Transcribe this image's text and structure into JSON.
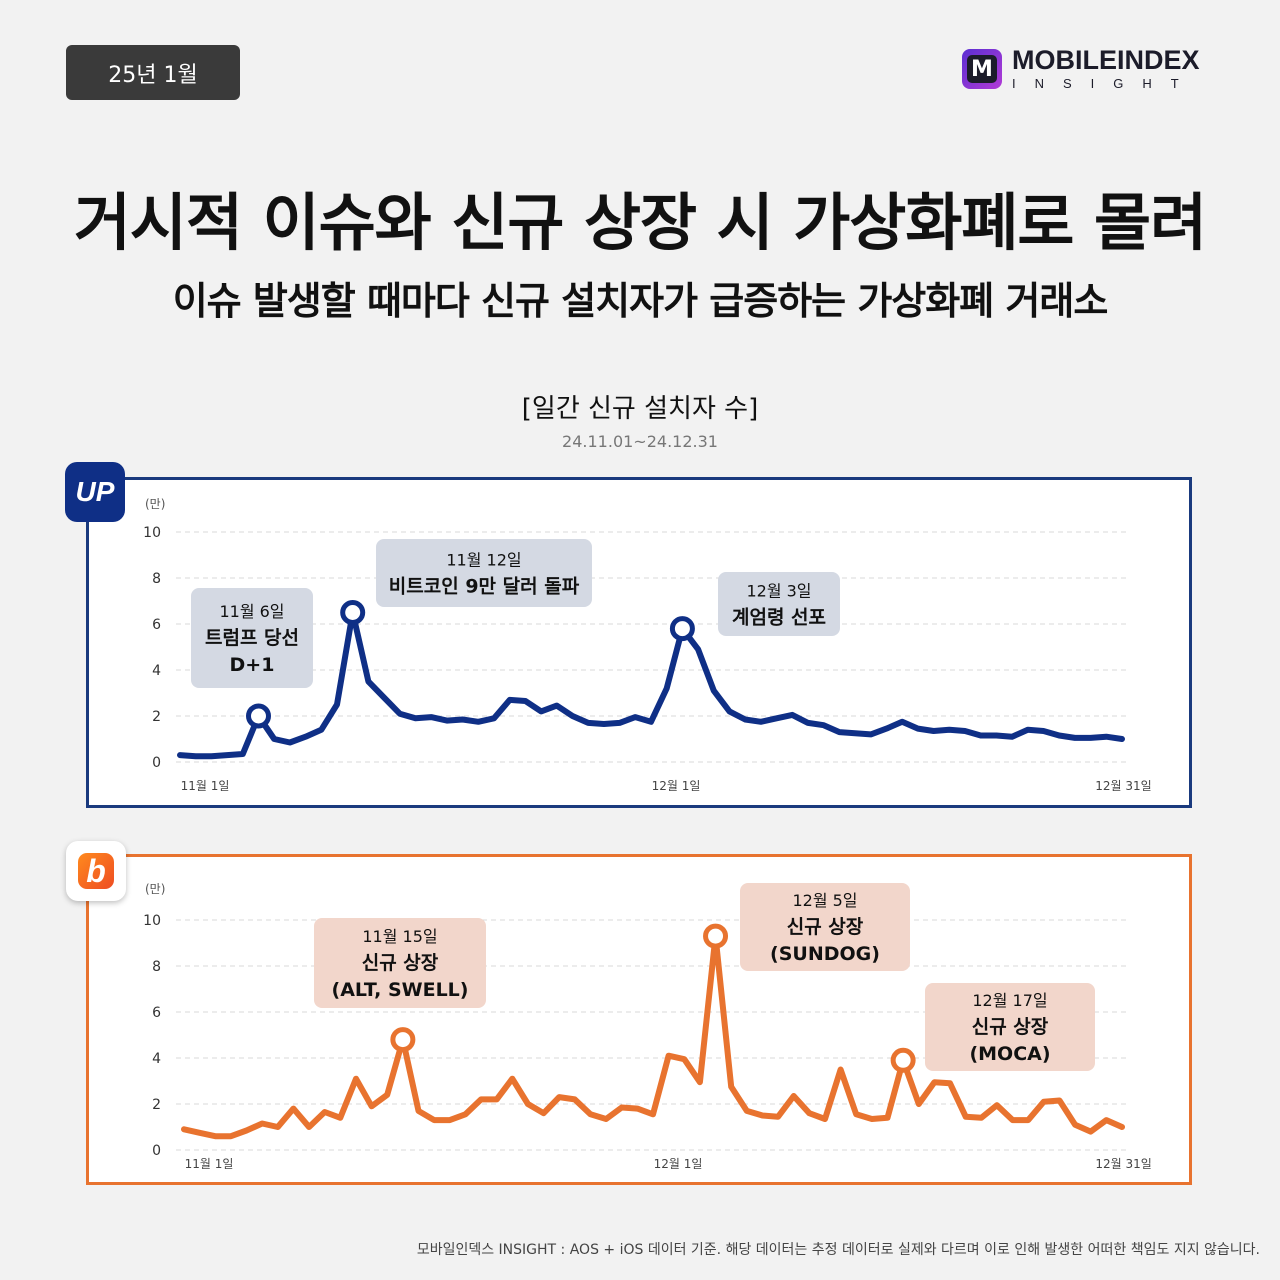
{
  "header": {
    "date_badge": "25년 1월",
    "logo_mark": "M",
    "logo_main": "MOBILEINDEX",
    "logo_sub": "INSIGHT"
  },
  "title": "거시적 이슈와 신규 상장 시 가상화폐로 몰려",
  "subtitle": "이슈 발생할 때마다 신규 설치자가 급증하는 가상화폐 거래소",
  "chart_header": {
    "title": "[일간 신규 설치자 수]",
    "period": "24.11.01~24.12.31"
  },
  "colors": {
    "upbit": "#0f2f86",
    "bithumb": "#e8732f",
    "upbit_callout": "#d4d9e3",
    "bithumb_callout": "#f2d6cb"
  },
  "icons": {
    "upbit": "upbit-app-icon",
    "bithumb": "bithumb-app-icon"
  },
  "icon_text": {
    "upbit": "UP",
    "bithumb": "b"
  },
  "footnote": "모바일인덱스 INSIGHT : AOS + iOS 데이터 기준. 해당 데이터는 추정 데이터로 실제와 다르며 이로 인해 발생한 어떠한 책임도 지지 않습니다.",
  "chart_data": [
    {
      "id": "upbit",
      "type": "line",
      "unit": "(만)",
      "ylim": [
        0,
        10
      ],
      "yticks": [
        0,
        2,
        4,
        6,
        8,
        10
      ],
      "grid": true,
      "x_range": [
        1,
        61
      ],
      "x_ticks": [
        {
          "x": 1,
          "label": "11월 1일"
        },
        {
          "x": 31,
          "label": "12월 1일"
        },
        {
          "x": 59.5,
          "label": "12월 31일"
        }
      ],
      "values": [
        0.3,
        0.25,
        0.25,
        0.3,
        0.35,
        2.0,
        1.0,
        0.85,
        1.1,
        1.4,
        2.5,
        6.5,
        3.5,
        2.8,
        2.1,
        1.9,
        1.95,
        1.8,
        1.85,
        1.75,
        1.9,
        2.7,
        2.65,
        2.2,
        2.45,
        2.0,
        1.7,
        1.65,
        1.7,
        1.95,
        1.75,
        3.2,
        5.8,
        4.9,
        3.1,
        2.2,
        1.85,
        1.75,
        1.9,
        2.05,
        1.7,
        1.6,
        1.3,
        1.25,
        1.2,
        1.45,
        1.75,
        1.45,
        1.35,
        1.4,
        1.35,
        1.15,
        1.15,
        1.1,
        1.4,
        1.35,
        1.15,
        1.05,
        1.05,
        1.1,
        1.0
      ],
      "callouts": [
        {
          "x": 6,
          "y": 2.0,
          "lines": [
            "11월 6일",
            "트럼프 당선",
            "D+1"
          ]
        },
        {
          "x": 12,
          "y": 6.5,
          "lines": [
            "11월 12일",
            "비트코인 9만 달러 돌파"
          ]
        },
        {
          "x": 33,
          "y": 5.8,
          "lines": [
            "12월 3일",
            "계엄령 선포"
          ]
        }
      ]
    },
    {
      "id": "bithumb",
      "type": "line",
      "unit": "(만)",
      "ylim": [
        0,
        10
      ],
      "yticks": [
        0,
        2,
        4,
        6,
        8,
        10
      ],
      "grid": true,
      "x_range": [
        1,
        61
      ],
      "x_ticks": [
        {
          "x": 1,
          "label": "11월 1일"
        },
        {
          "x": 31,
          "label": "12월 1일"
        },
        {
          "x": 59.5,
          "label": "12월 31일"
        }
      ],
      "values": [
        0.9,
        0.75,
        0.6,
        0.6,
        0.85,
        1.15,
        1.0,
        1.8,
        1.0,
        1.65,
        1.4,
        3.1,
        1.9,
        2.4,
        4.8,
        1.7,
        1.3,
        1.3,
        1.55,
        2.2,
        2.2,
        3.1,
        2.0,
        1.6,
        2.3,
        2.2,
        1.55,
        1.35,
        1.85,
        1.8,
        1.55,
        4.1,
        3.95,
        2.95,
        9.3,
        2.75,
        1.7,
        1.5,
        1.45,
        2.35,
        1.6,
        1.35,
        3.5,
        1.55,
        1.35,
        1.4,
        3.9,
        2.0,
        2.95,
        2.9,
        1.45,
        1.4,
        1.95,
        1.3,
        1.3,
        2.1,
        2.15,
        1.1,
        0.8,
        1.3,
        1.0
      ],
      "callouts": [
        {
          "x": 15,
          "y": 4.8,
          "lines": [
            "11월 15일",
            "신규 상장",
            "(ALT, SWELL)"
          ]
        },
        {
          "x": 35,
          "y": 9.3,
          "lines": [
            "12월 5일",
            "신규 상장",
            "(SUNDOG)"
          ]
        },
        {
          "x": 47,
          "y": 3.9,
          "lines": [
            "12월 17일",
            "신규 상장",
            "(MOCA)"
          ]
        }
      ]
    }
  ]
}
